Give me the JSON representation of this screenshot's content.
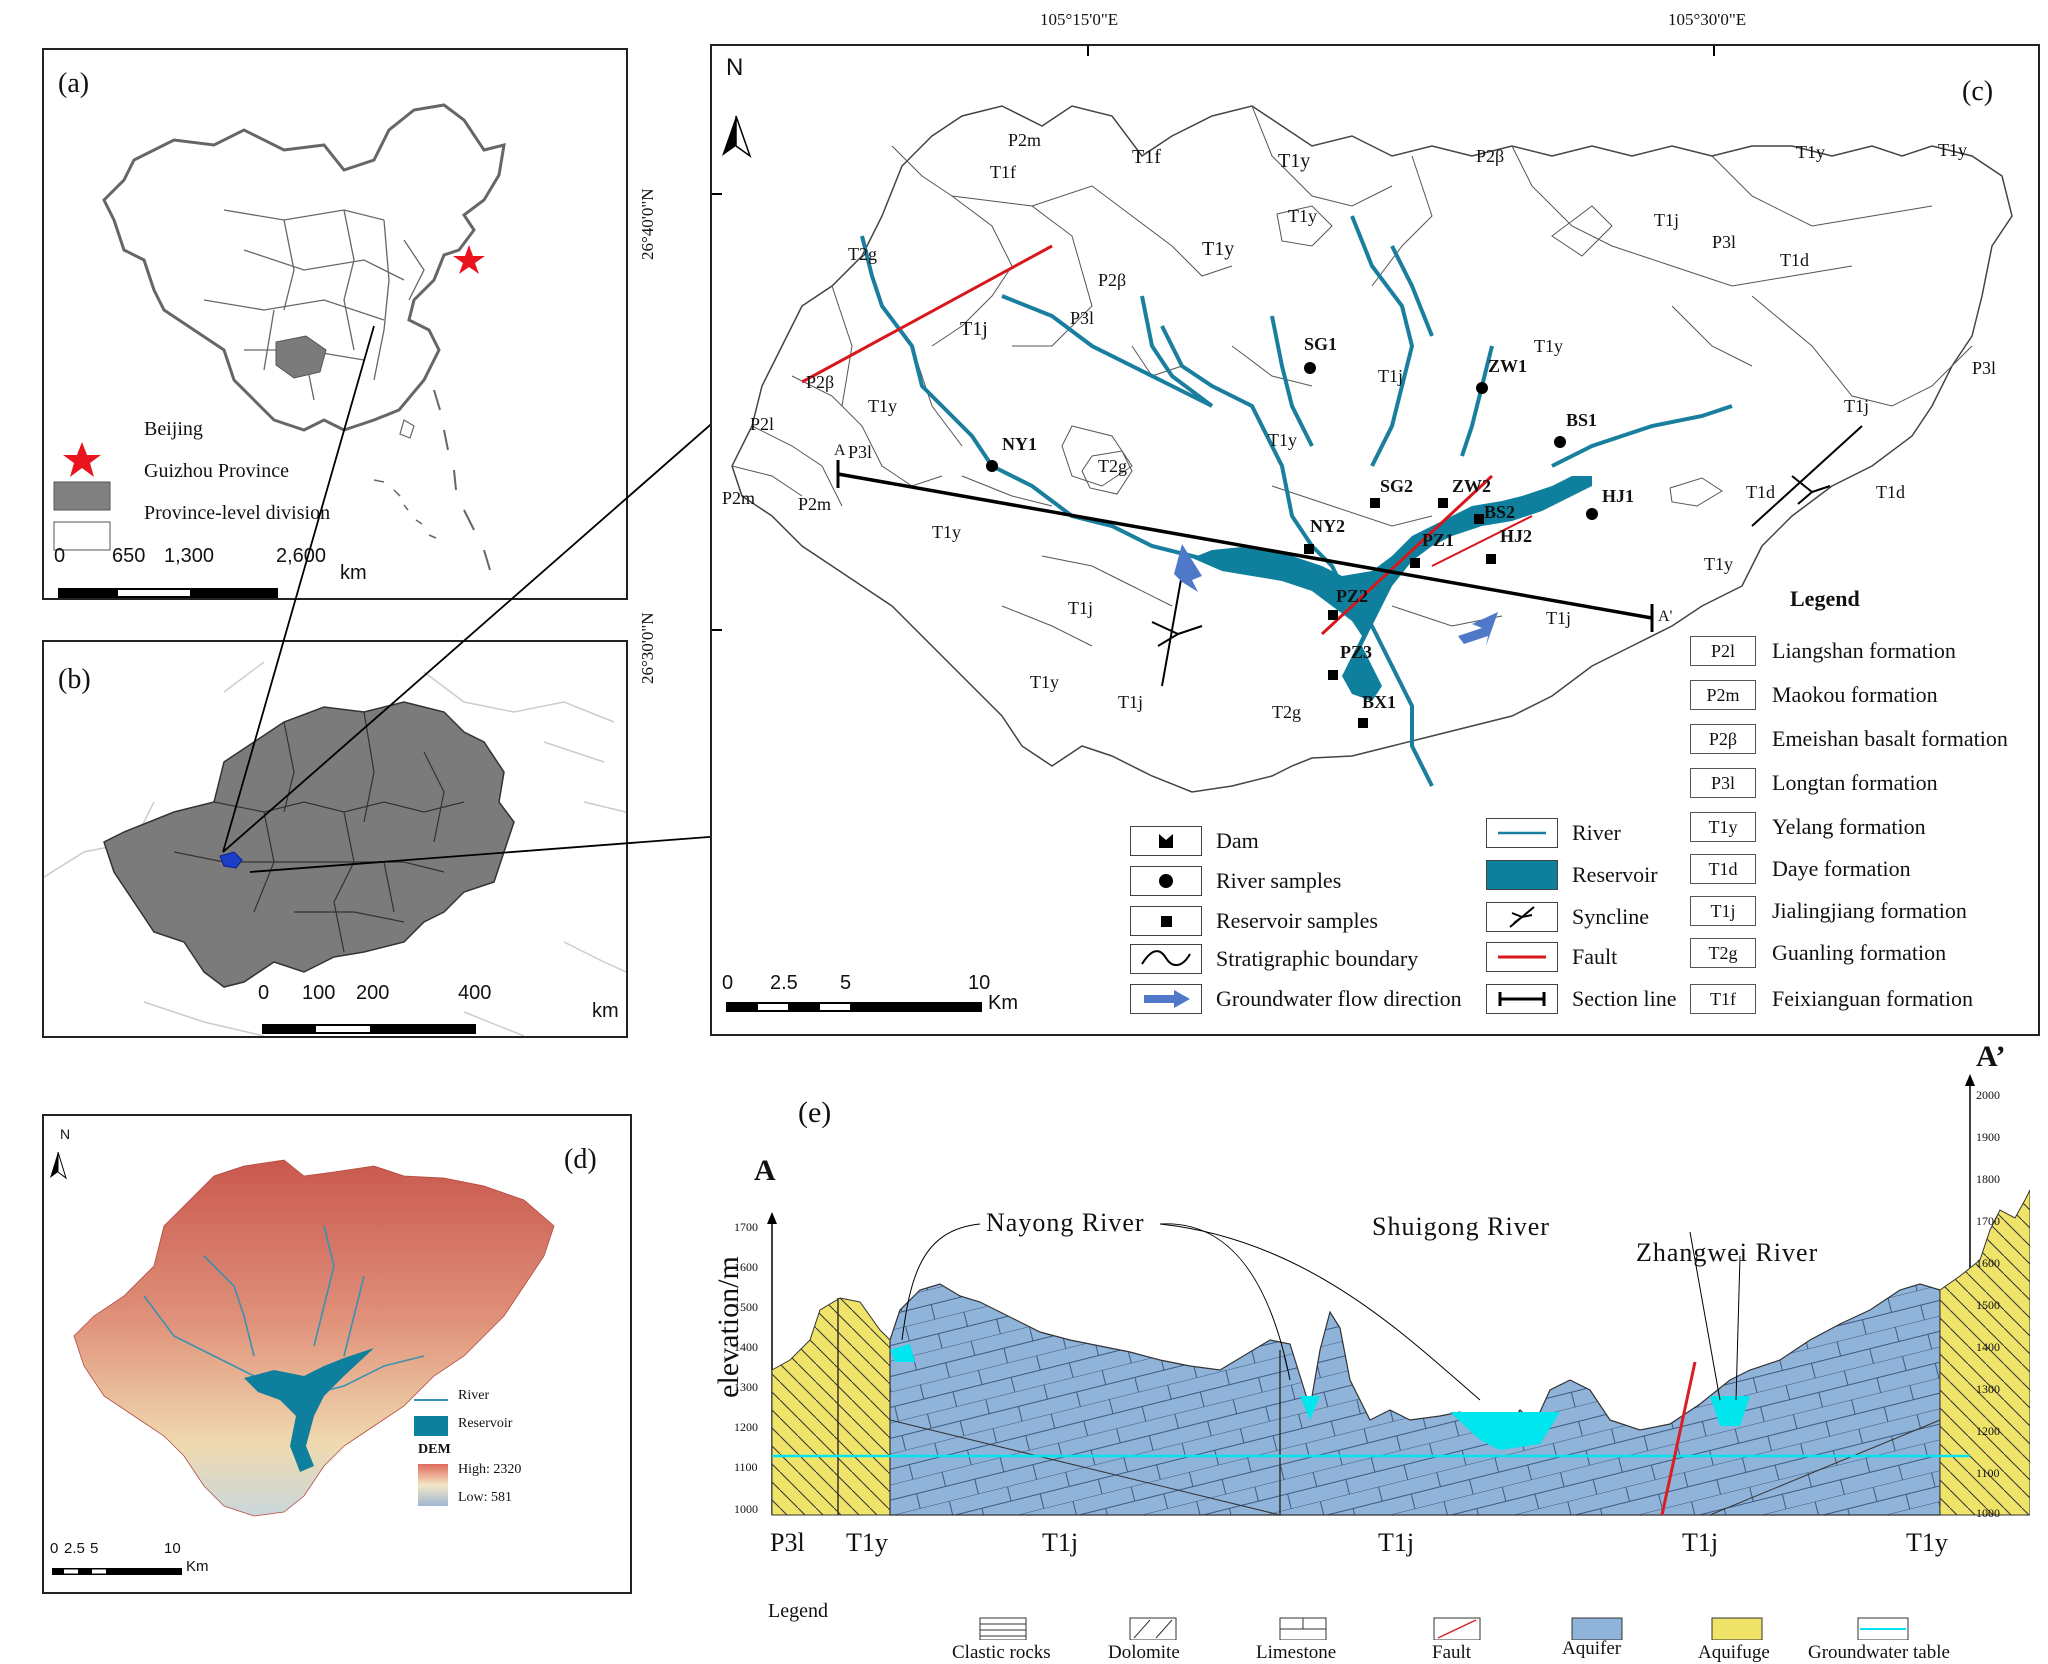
{
  "panel_a": {
    "label": "(a)",
    "legend": [
      {
        "symbol": "star",
        "text": "Beijing",
        "color": "#e8141e"
      },
      {
        "symbol": "grey-box",
        "text": "Guizhou Province",
        "color": "#808080"
      },
      {
        "symbol": "white-box",
        "text": "Province-level division",
        "color": "#ffffff"
      }
    ],
    "scale": {
      "ticks": [
        "0",
        "650",
        "1,300",
        "2,600"
      ],
      "unit": "km"
    }
  },
  "panel_b": {
    "label": "(b)",
    "scale": {
      "ticks": [
        "0",
        "100",
        "200",
        "400"
      ],
      "unit": "km"
    }
  },
  "panel_c": {
    "label": "(c)",
    "north": "N",
    "coords_top": [
      "105°15'0\"E",
      "105°30'0\"E"
    ],
    "coords_left": [
      "26°40'0\"N",
      "26°30'0\"N"
    ],
    "formation_labels": [
      "P2m",
      "T1f",
      "T1f",
      "T1y",
      "P2β",
      "P3l",
      "T1y",
      "T1y",
      "T2g",
      "T1j",
      "T1y",
      "P2β",
      "P3l",
      "T1j",
      "T1y",
      "T1j",
      "T1d",
      "P3l",
      "T1y",
      "P2β",
      "T1y",
      "P2l",
      "P3l",
      "T2g",
      "T1y",
      "T1j",
      "T1d",
      "P2m",
      "P2m",
      "T1y",
      "T1j",
      "T1y",
      "T1j",
      "T1j",
      "T2g",
      "T1y",
      "T1d"
    ],
    "samples": [
      "SG1",
      "ZW1",
      "BS1",
      "NY1",
      "SG2",
      "ZW2",
      "BS2",
      "HJ1",
      "NY2",
      "PZ1",
      "HJ2",
      "PZ2",
      "PZ3",
      "BX1"
    ],
    "section": [
      "A",
      "A'"
    ],
    "scale": {
      "ticks": [
        "0",
        "2.5",
        "5",
        "10"
      ],
      "unit": "Km"
    },
    "symbol_legend": [
      {
        "icon": "dam",
        "text": "Dam"
      },
      {
        "icon": "circle",
        "text": "River samples"
      },
      {
        "icon": "square",
        "text": "Reservoir samples"
      },
      {
        "icon": "boundary",
        "text": "Stratigraphic boundary"
      },
      {
        "icon": "arrow",
        "text": "Groundwater flow direction"
      },
      {
        "icon": "river",
        "text": "River"
      },
      {
        "icon": "reservoir",
        "text": "Reservoir"
      },
      {
        "icon": "syncline",
        "text": "Syncline"
      },
      {
        "icon": "fault",
        "text": "Fault"
      },
      {
        "icon": "section",
        "text": "Section line"
      }
    ],
    "legend_title": "Legend",
    "formation_legend": [
      {
        "code": "P2l",
        "name": "Liangshan formation"
      },
      {
        "code": "P2m",
        "name": "Maokou formation"
      },
      {
        "code": "P2β",
        "name": "Emeishan basalt formation"
      },
      {
        "code": "P3l",
        "name": "Longtan formation"
      },
      {
        "code": "T1y",
        "name": "Yelang formation"
      },
      {
        "code": "T1d",
        "name": "Daye formation"
      },
      {
        "code": "T1j",
        "name": "Jialingjiang formation"
      },
      {
        "code": "T2g",
        "name": "Guanling formation"
      },
      {
        "code": "T1f",
        "name": "Feixianguan formation"
      }
    ]
  },
  "panel_d": {
    "label": "(d)",
    "north": "N",
    "legend": {
      "river": "River",
      "reservoir": "Reservoir",
      "dem": "DEM",
      "high": "High: 2320",
      "low": "Low: 581"
    },
    "scale": {
      "ticks": [
        "0",
        "2.5",
        "5",
        "10"
      ],
      "unit": "Km"
    }
  },
  "panel_e": {
    "label": "(e)",
    "ends": [
      "A",
      "A’"
    ],
    "ylabel": "elevation/m",
    "left_ticks": [
      "1700",
      "1600",
      "1500",
      "1400",
      "1300",
      "1200",
      "1100",
      "1000"
    ],
    "right_ticks": [
      "2000",
      "1900",
      "1800",
      "1700",
      "1600",
      "1500",
      "1400",
      "1300",
      "1200",
      "1100",
      "1000"
    ],
    "rivers": [
      "Nayong River",
      "Shuigong River",
      "Zhangwei River"
    ],
    "units": [
      "P3l",
      "T1y",
      "T1j",
      "T1j",
      "T1j",
      "T1y"
    ],
    "legend_title": "Legend",
    "legend": [
      "Clastic rocks",
      "Dolomite",
      "Limestone",
      "Fault",
      "Aquifer",
      "Aquifuge",
      "Groundwater table"
    ],
    "colors": {
      "aquifer": "#8fb3d9",
      "aquifuge": "#f0e36a",
      "groundwater": "#00e5ee",
      "fault": "#d91f26"
    }
  },
  "colors": {
    "river": "#1a7f9e",
    "reservoir": "#0e7f9c",
    "fault": "#d8171c",
    "star": "#e8141e",
    "guizhou": "#7b7b7b",
    "arrow": "#4f78c8"
  }
}
